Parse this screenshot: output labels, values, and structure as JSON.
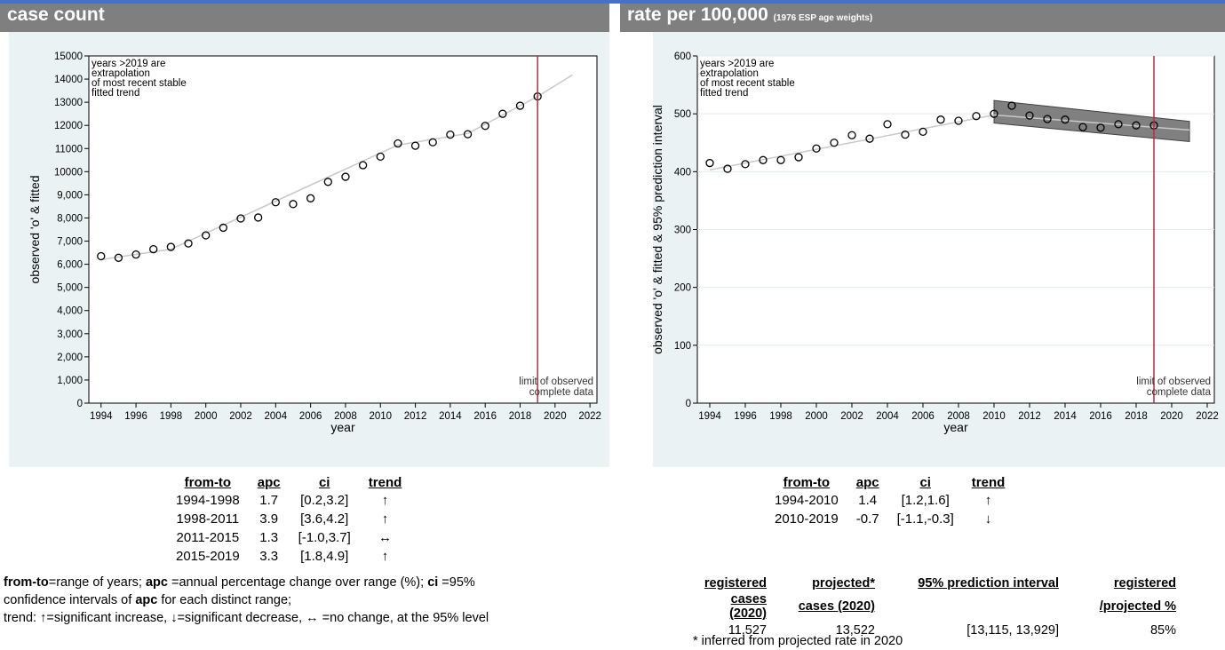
{
  "left_header": {
    "title": "case count"
  },
  "right_header": {
    "title": "rate per 100,000",
    "subtitle": "(1976 ESP age weights)"
  },
  "chart_data": [
    {
      "type": "scatter",
      "ylabel": "observed 'o' & fitted",
      "xlabel": "year",
      "xlim": [
        1993.3,
        2022.4
      ],
      "ylim": [
        0,
        15000
      ],
      "xticks": [
        1994,
        1996,
        1998,
        2000,
        2002,
        2004,
        2006,
        2008,
        2010,
        2012,
        2014,
        2016,
        2018,
        2020,
        2022
      ],
      "yticks": [
        0,
        1000,
        2000,
        3000,
        4000,
        5000,
        6000,
        7000,
        8000,
        9000,
        10000,
        11000,
        12000,
        13000,
        14000,
        15000
      ],
      "ytick_labels": [
        "0",
        "1,000",
        "2,000",
        "3,000",
        "4,000",
        "5,000",
        "6,000",
        "7,000",
        "8,000",
        "9,000",
        "10000",
        "11000",
        "12000",
        "13000",
        "14000",
        "15000"
      ],
      "observed": {
        "x": [
          1994,
          1995,
          1996,
          1997,
          1998,
          1999,
          2000,
          2001,
          2002,
          2003,
          2004,
          2005,
          2006,
          2007,
          2008,
          2009,
          2010,
          2011,
          2012,
          2013,
          2014,
          2015,
          2016,
          2017,
          2018,
          2019
        ],
        "y": [
          6350,
          6280,
          6420,
          6650,
          6750,
          6900,
          7250,
          7580,
          7980,
          8020,
          8680,
          8600,
          8850,
          9560,
          9780,
          10280,
          10650,
          11220,
          11120,
          11270,
          11600,
          11620,
          11980,
          12500,
          12850,
          13250
        ]
      },
      "fitted": {
        "x": [
          1994,
          1998,
          2011,
          2015,
          2019,
          2021
        ],
        "y": [
          6200,
          6650,
          11150,
          11650,
          13250,
          14180
        ]
      },
      "annotation": [
        "years >2019 are",
        "extrapolation",
        "of most recent stable",
        "fitted trend"
      ],
      "vline": {
        "x": 2019,
        "color": "#c0283c",
        "label": [
          "limit of observed",
          "complete data"
        ]
      },
      "grid": false
    },
    {
      "type": "scatter",
      "ylabel": "observed 'o' & fitted & 95% prediction interval",
      "xlabel": "year",
      "xlim": [
        1993.3,
        2022.4
      ],
      "ylim": [
        0,
        600
      ],
      "xticks": [
        1994,
        1996,
        1998,
        2000,
        2002,
        2004,
        2006,
        2008,
        2010,
        2012,
        2014,
        2016,
        2018,
        2020,
        2022
      ],
      "yticks": [
        0,
        100,
        200,
        300,
        400,
        500,
        600
      ],
      "ytick_labels": [
        "0",
        "100",
        "200",
        "300",
        "400",
        "500",
        "600"
      ],
      "observed": {
        "x": [
          1994,
          1995,
          1996,
          1997,
          1998,
          1999,
          2000,
          2001,
          2002,
          2003,
          2004,
          2005,
          2006,
          2007,
          2008,
          2009,
          2010,
          2011,
          2012,
          2013,
          2014,
          2015,
          2016,
          2017,
          2018,
          2019
        ],
        "y": [
          415,
          405,
          413,
          420,
          420,
          425,
          440,
          450,
          463,
          457,
          482,
          464,
          469,
          490,
          488,
          496,
          500,
          514,
          497,
          491,
          490,
          477,
          476,
          482,
          480,
          480
        ]
      },
      "fitted": {
        "x": [
          1994,
          2010,
          2021
        ],
        "y": [
          403,
          498,
          472
        ]
      },
      "prediction_band": {
        "x": [
          2010,
          2021
        ],
        "upper": [
          523,
          487
        ],
        "lower": [
          484,
          452
        ]
      },
      "annotation": [
        "years >2019 are",
        "extrapolation",
        "of most recent stable",
        "fitted trend"
      ],
      "vline": {
        "x": 2019,
        "color": "#c0283c",
        "label": [
          "limit of observed",
          "complete data"
        ]
      },
      "grid": true
    }
  ],
  "left_table": {
    "headers": [
      "from-to",
      "apc",
      "ci",
      "trend"
    ],
    "rows": [
      [
        "1994-1998",
        "1.7",
        "[0.2,3.2]",
        "↑"
      ],
      [
        "1998-2011",
        "3.9",
        "[3.6,4.2]",
        "↑"
      ],
      [
        "2011-2015",
        "1.3",
        "[-1.0,3.7]",
        "↔"
      ],
      [
        "2015-2019",
        "3.3",
        "[1.8,4.9]",
        "↑"
      ]
    ]
  },
  "right_table": {
    "headers": [
      "from-to",
      "apc",
      "ci",
      "trend"
    ],
    "rows": [
      [
        "1994-2010",
        "1.4",
        "[1.2,1.6]",
        "↑"
      ],
      [
        "2010-2019",
        "-0.7",
        "[-1.1,-0.3]",
        "↓"
      ]
    ]
  },
  "footnote": {
    "l1_b1": "from-to",
    "l1_t1": "=range of years; ",
    "l1_b2": "apc",
    "l1_t2": " =annual percentage change over range (%); ",
    "l1_b3": "ci",
    "l1_t3": " =95%",
    "l2_t1": "confidence intervals of ",
    "l2_b1": "apc",
    "l2_t2": " for each distinct range;",
    "l3_t1": "trend: ",
    "l3_up": "↑",
    "l3_t2": "=significant increase, ",
    "l3_down": "↓",
    "l3_t3": "=significant decrease, ",
    "l3_flat": "↔",
    "l3_t4": " =no change, at the 95% level"
  },
  "projection": {
    "h_registered_1": "registered",
    "h_registered_2": "cases (2020)",
    "h_projected_1": "projected*",
    "h_projected_2": "cases (2020)",
    "h_interval": "95% prediction interval",
    "h_ratio_1": "registered",
    "h_ratio_2": "/projected %",
    "registered": "11,527",
    "projected": "13,522",
    "interval": "[13,115, 13,929]",
    "ratio": "85%",
    "note": "* inferred from projected rate in 2020"
  }
}
